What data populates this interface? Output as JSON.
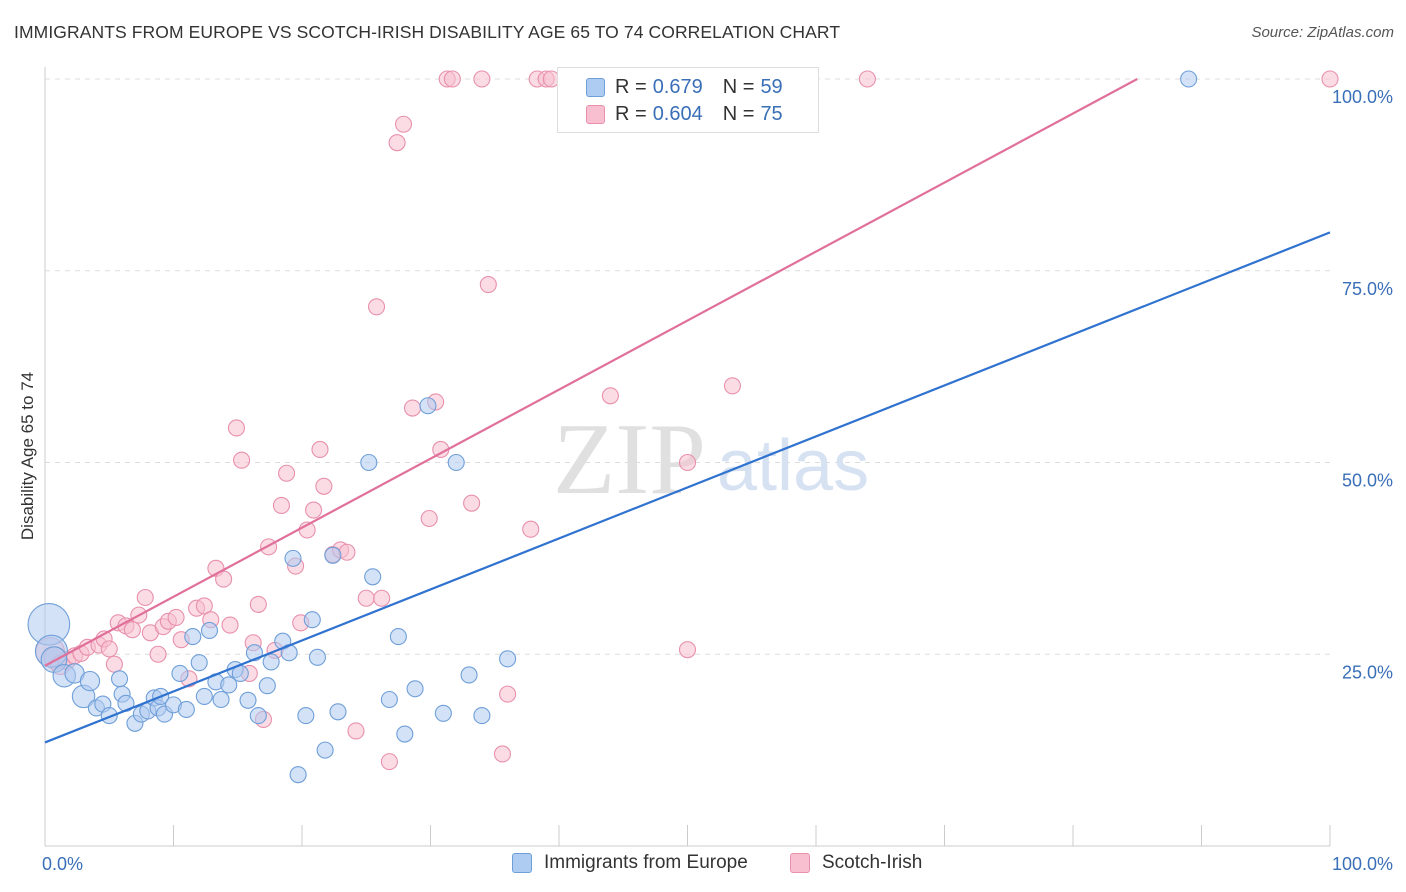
{
  "header": {
    "title": "IMMIGRANTS FROM EUROPE VS SCOTCH-IRISH DISABILITY AGE 65 TO 74 CORRELATION CHART",
    "source": "Source: ZipAtlas.com"
  },
  "watermark": {
    "zip": "ZIP",
    "atlas": "atlas"
  },
  "legend": {
    "r_label": "R =",
    "n_label": "N =",
    "rows": [
      {
        "r": "0.679",
        "n": "59",
        "fill": "#aecbf1",
        "stroke": "#6f9fd8"
      },
      {
        "r": "0.604",
        "n": "75",
        "fill": "#f8bfd0",
        "stroke": "#e890ac"
      }
    ]
  },
  "colors": {
    "blue_fill": "#aecbf1",
    "blue_stroke": "#6f9fd8",
    "blue_line": "#2f72cf",
    "pink_fill": "#f8bfd0",
    "pink_stroke": "#e890ac",
    "pink_line": "#e0709a",
    "grid": "#dddddd",
    "axis_text": "#3a6fb8"
  },
  "chart_data": {
    "type": "scatter",
    "title": "IMMIGRANTS FROM EUROPE VS SCOTCH-IRISH DISABILITY AGE 65 TO 74 CORRELATION CHART",
    "xlabel": "",
    "ylabel": "Disability Age 65 to 74",
    "xlim": [
      0,
      100
    ],
    "ylim": [
      0,
      100
    ],
    "x_tick_labels": [
      "0.0%",
      "100.0%"
    ],
    "y_ticks": [
      25,
      50,
      75,
      100
    ],
    "y_tick_labels": [
      "25.0%",
      "50.0%",
      "75.0%",
      "100.0%"
    ],
    "grid": true,
    "legend_position": "top-center",
    "series": [
      {
        "name": "Immigrants from Europe",
        "color": "#aecbf1",
        "points": [
          [
            0.3,
            28.9,
            26
          ],
          [
            0.5,
            25.4,
            20
          ],
          [
            0.7,
            24.3,
            16
          ],
          [
            1.5,
            22.2,
            14
          ],
          [
            2.3,
            22.5,
            12
          ],
          [
            3.0,
            19.5,
            14
          ],
          [
            3.5,
            21.5,
            12
          ],
          [
            4.0,
            18.0,
            10
          ],
          [
            4.5,
            18.5,
            10
          ],
          [
            5.0,
            17.0,
            10
          ],
          [
            5.8,
            21.8,
            10
          ],
          [
            6.0,
            19.8,
            10
          ],
          [
            6.3,
            18.6,
            10
          ],
          [
            7.0,
            16.0,
            10
          ],
          [
            7.5,
            17.2,
            10
          ],
          [
            8.0,
            17.6,
            10
          ],
          [
            8.5,
            19.3,
            10
          ],
          [
            8.8,
            18.0,
            10
          ],
          [
            9.0,
            19.5,
            10
          ],
          [
            9.3,
            17.2,
            10
          ],
          [
            10.0,
            18.4,
            10
          ],
          [
            10.5,
            22.5,
            10
          ],
          [
            11.0,
            17.8,
            10
          ],
          [
            11.5,
            27.3,
            10
          ],
          [
            12.0,
            23.9,
            10
          ],
          [
            12.4,
            19.5,
            10
          ],
          [
            12.8,
            28.1,
            10
          ],
          [
            13.3,
            21.4,
            10
          ],
          [
            13.7,
            19.1,
            10
          ],
          [
            14.3,
            21.0,
            10
          ],
          [
            14.8,
            23.0,
            10
          ],
          [
            15.2,
            22.5,
            10
          ],
          [
            15.8,
            19.0,
            10
          ],
          [
            16.3,
            25.2,
            10
          ],
          [
            16.6,
            17.0,
            10
          ],
          [
            17.3,
            20.9,
            10
          ],
          [
            17.6,
            24.0,
            10
          ],
          [
            18.5,
            26.7,
            10
          ],
          [
            19.0,
            25.2,
            10
          ],
          [
            19.3,
            37.5,
            10
          ],
          [
            19.7,
            9.3,
            10
          ],
          [
            20.3,
            17.0,
            10
          ],
          [
            20.8,
            29.5,
            10
          ],
          [
            21.2,
            24.6,
            10
          ],
          [
            21.8,
            12.5,
            10
          ],
          [
            22.4,
            37.9,
            10
          ],
          [
            22.8,
            17.5,
            10
          ],
          [
            25.2,
            50.0,
            10
          ],
          [
            25.5,
            35.1,
            10
          ],
          [
            26.8,
            19.1,
            10
          ],
          [
            27.5,
            27.3,
            10
          ],
          [
            28.0,
            14.6,
            10
          ],
          [
            28.8,
            20.5,
            10
          ],
          [
            29.8,
            57.4,
            10
          ],
          [
            31.0,
            17.3,
            10
          ],
          [
            32.0,
            50.0,
            10
          ],
          [
            33.0,
            22.3,
            10
          ],
          [
            34.0,
            17.0,
            10
          ],
          [
            36.0,
            24.4,
            10
          ],
          [
            89.0,
            100.0,
            10
          ]
        ]
      },
      {
        "name": "Scotch-Irish",
        "color": "#f8bfd0",
        "points": [
          [
            0.4,
            25.3,
            18
          ],
          [
            0.8,
            24.5,
            14
          ],
          [
            1.2,
            23.6,
            12
          ],
          [
            1.7,
            24.2,
            11
          ],
          [
            2.3,
            24.8,
            10
          ],
          [
            2.8,
            25.1,
            10
          ],
          [
            3.3,
            25.9,
            10
          ],
          [
            4.2,
            26.2,
            10
          ],
          [
            4.6,
            27.0,
            10
          ],
          [
            5.0,
            25.7,
            10
          ],
          [
            5.4,
            23.7,
            10
          ],
          [
            5.7,
            29.1,
            10
          ],
          [
            6.3,
            28.7,
            10
          ],
          [
            6.8,
            28.2,
            10
          ],
          [
            7.3,
            30.1,
            10
          ],
          [
            7.8,
            32.4,
            10
          ],
          [
            8.2,
            27.8,
            10
          ],
          [
            8.8,
            25.0,
            10
          ],
          [
            9.2,
            28.6,
            10
          ],
          [
            9.6,
            29.3,
            10
          ],
          [
            10.2,
            29.8,
            10
          ],
          [
            10.6,
            26.9,
            10
          ],
          [
            11.2,
            21.8,
            10
          ],
          [
            11.8,
            31.0,
            10
          ],
          [
            12.4,
            31.3,
            10
          ],
          [
            12.9,
            29.5,
            10
          ],
          [
            13.3,
            36.2,
            10
          ],
          [
            13.9,
            34.8,
            10
          ],
          [
            14.4,
            28.8,
            10
          ],
          [
            14.9,
            54.5,
            10
          ],
          [
            15.3,
            50.3,
            10
          ],
          [
            15.9,
            22.5,
            10
          ],
          [
            16.2,
            26.5,
            10
          ],
          [
            16.6,
            31.5,
            10
          ],
          [
            17.0,
            16.5,
            10
          ],
          [
            17.4,
            39.0,
            10
          ],
          [
            17.9,
            25.5,
            10
          ],
          [
            18.4,
            44.4,
            10
          ],
          [
            18.8,
            48.6,
            10
          ],
          [
            19.5,
            36.5,
            10
          ],
          [
            19.9,
            29.1,
            10
          ],
          [
            20.4,
            41.2,
            10
          ],
          [
            20.9,
            43.8,
            10
          ],
          [
            21.4,
            51.7,
            10
          ],
          [
            21.7,
            46.9,
            10
          ],
          [
            22.4,
            38.0,
            10
          ],
          [
            23.0,
            38.6,
            10
          ],
          [
            23.5,
            38.3,
            10
          ],
          [
            24.2,
            15.0,
            10
          ],
          [
            25.0,
            32.3,
            10
          ],
          [
            25.8,
            70.3,
            10
          ],
          [
            26.2,
            32.3,
            10
          ],
          [
            26.8,
            11.0,
            10
          ],
          [
            27.4,
            91.7,
            10
          ],
          [
            27.9,
            94.1,
            10
          ],
          [
            28.6,
            57.1,
            10
          ],
          [
            29.9,
            42.7,
            10
          ],
          [
            30.4,
            57.9,
            10
          ],
          [
            30.8,
            51.7,
            10
          ],
          [
            31.3,
            100.0,
            10
          ],
          [
            31.7,
            100.0,
            10
          ],
          [
            33.2,
            44.7,
            10
          ],
          [
            34.0,
            100.0,
            10
          ],
          [
            34.5,
            73.2,
            10
          ],
          [
            35.6,
            12.0,
            10
          ],
          [
            36.0,
            19.8,
            10
          ],
          [
            37.8,
            41.3,
            10
          ],
          [
            38.3,
            100.0,
            10
          ],
          [
            39.0,
            100.0,
            10
          ],
          [
            39.4,
            100.0,
            10
          ],
          [
            44.0,
            58.7,
            10
          ],
          [
            50.0,
            50.0,
            10
          ],
          [
            50.0,
            25.6,
            10
          ],
          [
            53.5,
            60.0,
            10
          ],
          [
            64.0,
            100.0,
            10
          ],
          [
            100.0,
            100.0,
            10
          ]
        ]
      }
    ],
    "trend_lines": [
      {
        "series": "Immigrants from Europe",
        "x": [
          0,
          100
        ],
        "y": [
          13.5,
          80.0
        ]
      },
      {
        "series": "Scotch-Irish",
        "x": [
          0,
          85.0
        ],
        "y": [
          23.5,
          100.0
        ]
      }
    ]
  }
}
